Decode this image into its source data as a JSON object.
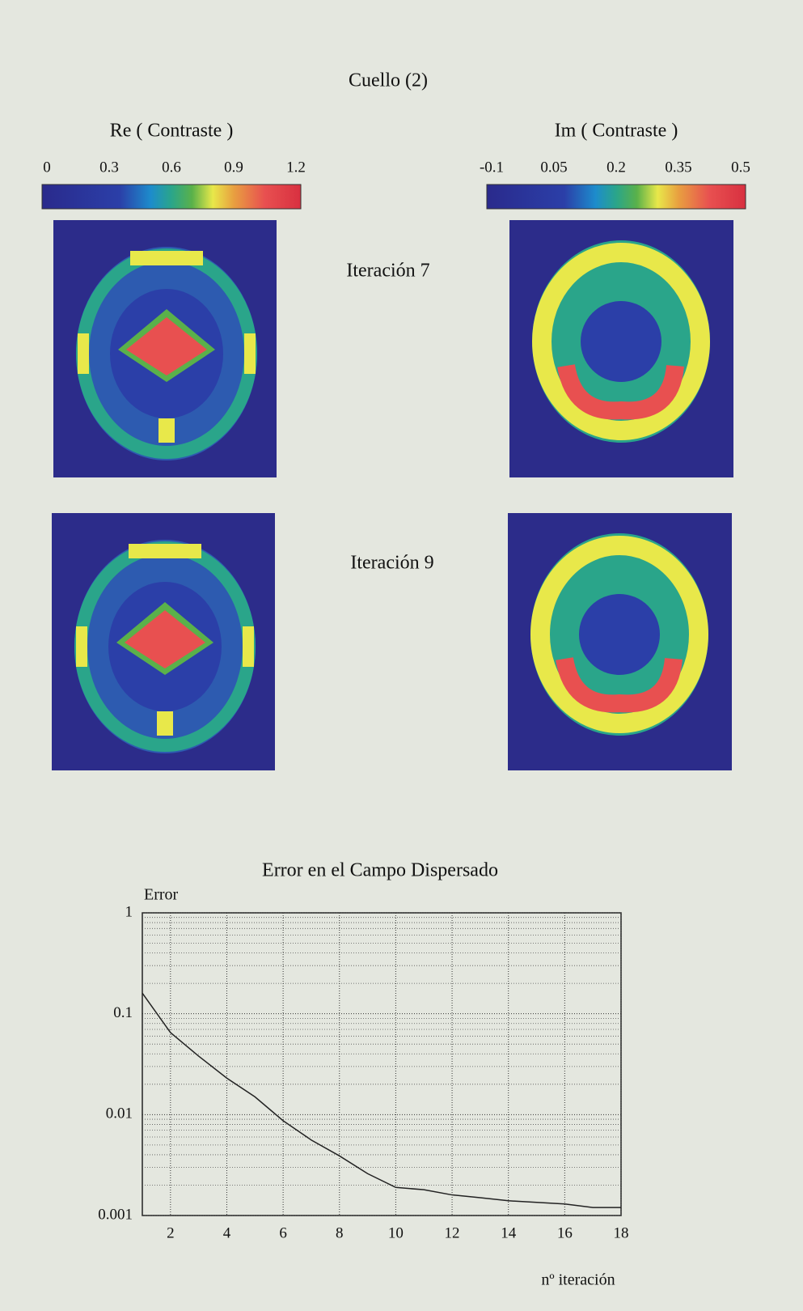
{
  "header": {
    "title": "Cuello (2)"
  },
  "colorbars": [
    {
      "label": "Re ( Contraste )",
      "lim": [
        0,
        1.2
      ],
      "ticks": [
        0,
        0.3,
        0.6,
        0.9,
        1.2
      ]
    },
    {
      "label": "Im ( Contraste )",
      "lim": [
        -0.1,
        0.5
      ],
      "ticks": [
        -0.1,
        0.05,
        0.2,
        0.35,
        0.5
      ]
    }
  ],
  "panels": [
    "Iteración 7",
    "Iteración 9"
  ],
  "chart_data": {
    "type": "line",
    "title": "Error en el Campo Dispersado",
    "y_label": "Error",
    "x_label": "nº iteración",
    "x": [
      1,
      2,
      3,
      4,
      5,
      6,
      7,
      8,
      9,
      10,
      11,
      12,
      13,
      14,
      15,
      16,
      17,
      18
    ],
    "series": [
      {
        "color": "#222222",
        "values": [
          0.16,
          0.065,
          0.038,
          0.023,
          0.015,
          0.0087,
          0.0056,
          0.0039,
          0.0026,
          0.0019,
          0.0018,
          0.0016,
          0.0015,
          0.0014,
          0.00135,
          0.0013,
          0.0012,
          0.0012
        ]
      }
    ],
    "xlim": [
      1,
      18
    ],
    "xticks": [
      2,
      4,
      6,
      8,
      10,
      12,
      14,
      16,
      18
    ],
    "ylim": [
      0.001,
      1
    ],
    "yticks": [
      1,
      0.1,
      0.01,
      0.001
    ],
    "log_y": true,
    "grid": true
  }
}
